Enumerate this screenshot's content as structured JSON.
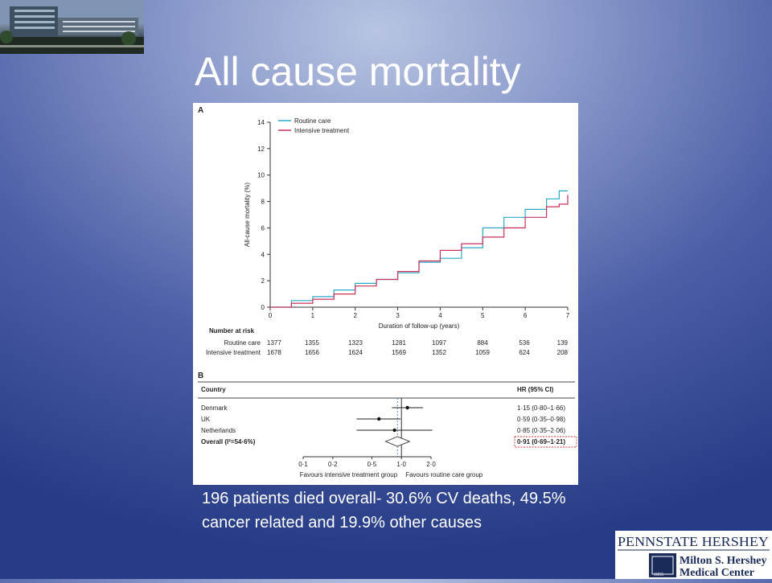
{
  "slide": {
    "title": "All cause mortality"
  },
  "caption": "196 patients died overall- 30.6% CV deaths, 49.5% cancer related and 19.9% other causes",
  "logo": {
    "line1": "PENNSTATE HERSHEY",
    "line2": "Milton S. Hershey",
    "line3": "Medical Center",
    "seal_text": "1855"
  },
  "colors": {
    "routine": "#2aa9c8",
    "intensive": "#c8315a",
    "highlight": "#cc3333"
  },
  "chart_data": [
    {
      "type": "line",
      "panel": "A",
      "xlabel": "Duration of follow-up (years)",
      "ylabel": "All-cause mortality (%)",
      "xlim": [
        0,
        7
      ],
      "ylim": [
        0,
        14
      ],
      "x_ticks": [
        "0",
        "1",
        "2",
        "3",
        "4",
        "5",
        "6",
        "7"
      ],
      "y_ticks": [
        "0",
        "2",
        "4",
        "6",
        "8",
        "10",
        "12",
        "14"
      ],
      "legend": [
        "Routine care",
        "Intensive treatment"
      ],
      "legend_position": "top-left",
      "series": [
        {
          "name": "Routine care",
          "color": "#2aa9c8",
          "x": [
            0,
            0.5,
            1.0,
            1.5,
            2.0,
            2.5,
            3.0,
            3.5,
            4.0,
            4.5,
            5.0,
            5.5,
            6.0,
            6.5,
            6.8,
            7.0
          ],
          "y": [
            0,
            0.5,
            0.8,
            1.3,
            1.8,
            2.1,
            2.6,
            3.4,
            3.7,
            4.5,
            6.0,
            6.8,
            7.4,
            8.2,
            8.8,
            8.8
          ]
        },
        {
          "name": "Intensive treatment",
          "color": "#c8315a",
          "x": [
            0,
            0.5,
            1.0,
            1.5,
            2.0,
            2.5,
            3.0,
            3.5,
            4.0,
            4.5,
            5.0,
            5.5,
            6.0,
            6.5,
            6.8,
            7.0
          ],
          "y": [
            0,
            0.3,
            0.6,
            1.0,
            1.6,
            2.1,
            2.7,
            3.5,
            4.3,
            4.8,
            5.3,
            6.0,
            6.8,
            7.6,
            7.8,
            8.5
          ]
        }
      ],
      "risk_table": {
        "title": "Number at risk",
        "rows": [
          {
            "label": "Routine care",
            "values": [
              "1377",
              "1355",
              "1323",
              "1281",
              "1097",
              "884",
              "536",
              "139"
            ]
          },
          {
            "label": "Intensive treatment",
            "values": [
              "1678",
              "1656",
              "1624",
              "1569",
              "1352",
              "1059",
              "624",
              "208"
            ]
          }
        ]
      }
    },
    {
      "type": "forest",
      "panel": "B",
      "header_left": "Country",
      "header_right": "HR (95% CI)",
      "xlim": [
        0.1,
        2.0
      ],
      "x_ticks": [
        "0·1",
        "0·2",
        "0·5",
        "1·0",
        "2·0"
      ],
      "footer_left": "Favours intensive treatment group",
      "footer_right": "Favours routine care group",
      "rows": [
        {
          "label": "Denmark",
          "hr": 1.15,
          "lo": 0.8,
          "hi": 1.66,
          "ci_text": "1·15 (0·80–1·66)",
          "bold": false
        },
        {
          "label": "UK",
          "hr": 0.59,
          "lo": 0.35,
          "hi": 0.98,
          "ci_text": "0·59 (0·35–0·98)",
          "bold": false
        },
        {
          "label": "Netherlands",
          "hr": 0.85,
          "lo": 0.35,
          "hi": 2.06,
          "ci_text": "0·85 (0·35–2·06)",
          "bold": false
        },
        {
          "label": "Overall (I²=54·6%)",
          "hr": 0.91,
          "lo": 0.69,
          "hi": 1.21,
          "ci_text": "0·91 (0·69–1·21)",
          "bold": true,
          "diamond": true
        }
      ]
    }
  ]
}
